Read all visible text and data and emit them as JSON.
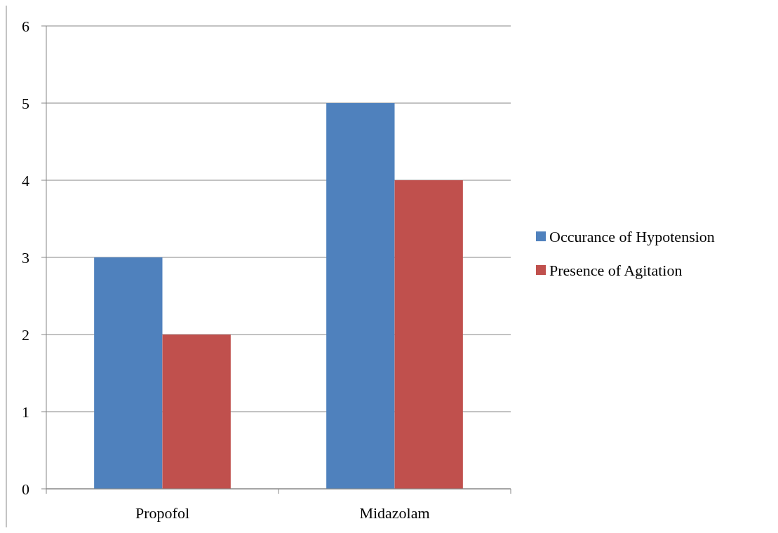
{
  "chart_data": {
    "type": "bar",
    "categories": [
      "Propofol",
      "Midazolam"
    ],
    "series": [
      {
        "name": "Occurance of Hypotension",
        "color": "#4f81bd",
        "values": [
          3,
          5
        ]
      },
      {
        "name": "Presence of Agitation",
        "color": "#c0504d",
        "values": [
          2,
          4
        ]
      }
    ],
    "ylim": [
      0,
      6
    ],
    "yticks": [
      0,
      1,
      2,
      3,
      4,
      5,
      6
    ],
    "grid": "y",
    "legend": "right"
  }
}
